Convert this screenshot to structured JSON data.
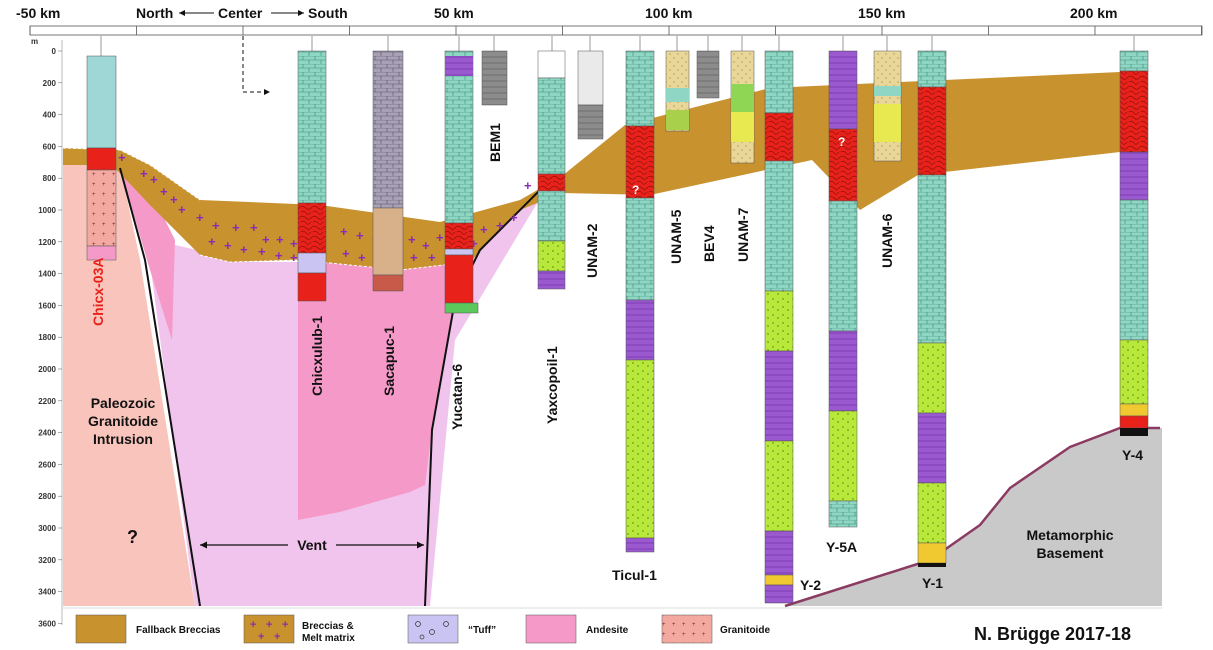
{
  "distance_scale": {
    "labels": [
      {
        "text": "-50 km",
        "key": "km_m50"
      },
      {
        "text": "50 km",
        "key": "km_50"
      },
      {
        "text": "100 km",
        "key": "km_100"
      },
      {
        "text": "150 km",
        "key": "km_150"
      },
      {
        "text": "200 km",
        "key": "km_200"
      }
    ],
    "north": "North",
    "center": "Center",
    "south": "South"
  },
  "depth_axis": {
    "unit": "m",
    "ticks": [
      "0",
      "200",
      "400",
      "600",
      "800",
      "1000",
      "1200",
      "1400",
      "1600",
      "1800",
      "2000",
      "2200",
      "2400",
      "2600",
      "2800",
      "3000",
      "3200",
      "3400",
      "3600"
    ]
  },
  "wells": {
    "chicx_03a": "Chicx-03A",
    "chicxulub_1": "Chicxulub-1",
    "sacapuc_1": "Sacapuc-1",
    "yucatan_6": "Yucatan-6",
    "bem1": "BEM1",
    "yaxcopoil_1": "Yaxcopoil-1",
    "unam_2": "UNAM-2",
    "ticul_1": "Ticul-1",
    "unam_5": "UNAM-5",
    "bev4": "BEV4",
    "unam_7": "UNAM-7",
    "y_2": "Y-2",
    "y_5a": "Y-5A",
    "unam_6": "UNAM-6",
    "y_1": "Y-1",
    "y_4": "Y-4"
  },
  "units": {
    "paleozoic": [
      "Paleozoic",
      "Granitoide",
      "Intrusion"
    ],
    "question": "?",
    "vent": "Vent",
    "metamorphic": [
      "Metamorphic",
      "Basement"
    ]
  },
  "legend": {
    "fallback": "Fallback Breccias",
    "breccias": [
      "Breccias &",
      "Melt matrix"
    ],
    "tuff": "“Tuff”",
    "andesite": "Andesite",
    "granitoide": "Granitoide"
  },
  "author": "N. Brügge 2017-18",
  "colors": {
    "breccia": "#c8922e",
    "melt": "#e8211a",
    "andesite": "#f59ac8",
    "vent": "#f0c4ec",
    "granite": "#f8c4bc",
    "basement": "#c9c9c9",
    "carbonate": "#8fd6c4",
    "evaporite": "#9b59d0",
    "anhydrite": "#b8e83a",
    "plus": "#8a2bb5",
    "tuff": "#c9c4f2",
    "basement_line": "#8b3a62"
  }
}
